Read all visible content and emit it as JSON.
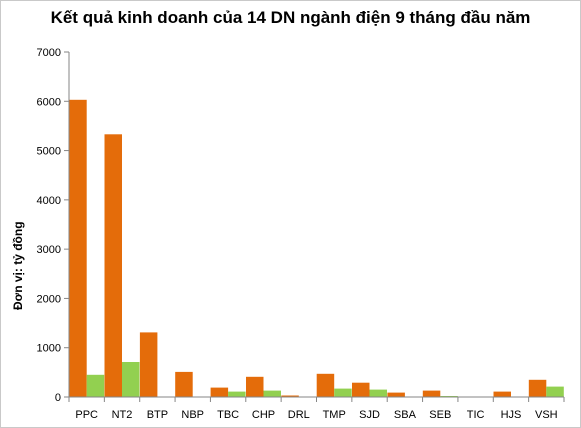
{
  "chart_data": {
    "type": "bar",
    "title": "Kết quả kinh doanh của 14 DN ngành điện 9 tháng đầu năm",
    "xlabel": "",
    "ylabel": "Đơn vị: tỷ đồng",
    "ylim": [
      0,
      7000
    ],
    "yticks": [
      "0",
      "1000",
      "2000",
      "3000",
      "4000",
      "5000",
      "6000",
      "7000"
    ],
    "grid": false,
    "legend": "none",
    "categories": [
      "PPC",
      "NT2",
      "BTP",
      "NBP",
      "TBC",
      "CHP",
      "DRL",
      "TMP",
      "SJD",
      "SBA",
      "SEB",
      "TIC",
      "HJS",
      "VSH"
    ],
    "series": [
      {
        "color": "#E46C0A",
        "values": [
          6030,
          5330,
          1310,
          510,
          190,
          410,
          30,
          470,
          290,
          90,
          130,
          5,
          110,
          350
        ]
      },
      {
        "color": "#92D050",
        "values": [
          450,
          710,
          0,
          0,
          110,
          130,
          10,
          170,
          150,
          0,
          20,
          0,
          0,
          210
        ]
      }
    ]
  }
}
